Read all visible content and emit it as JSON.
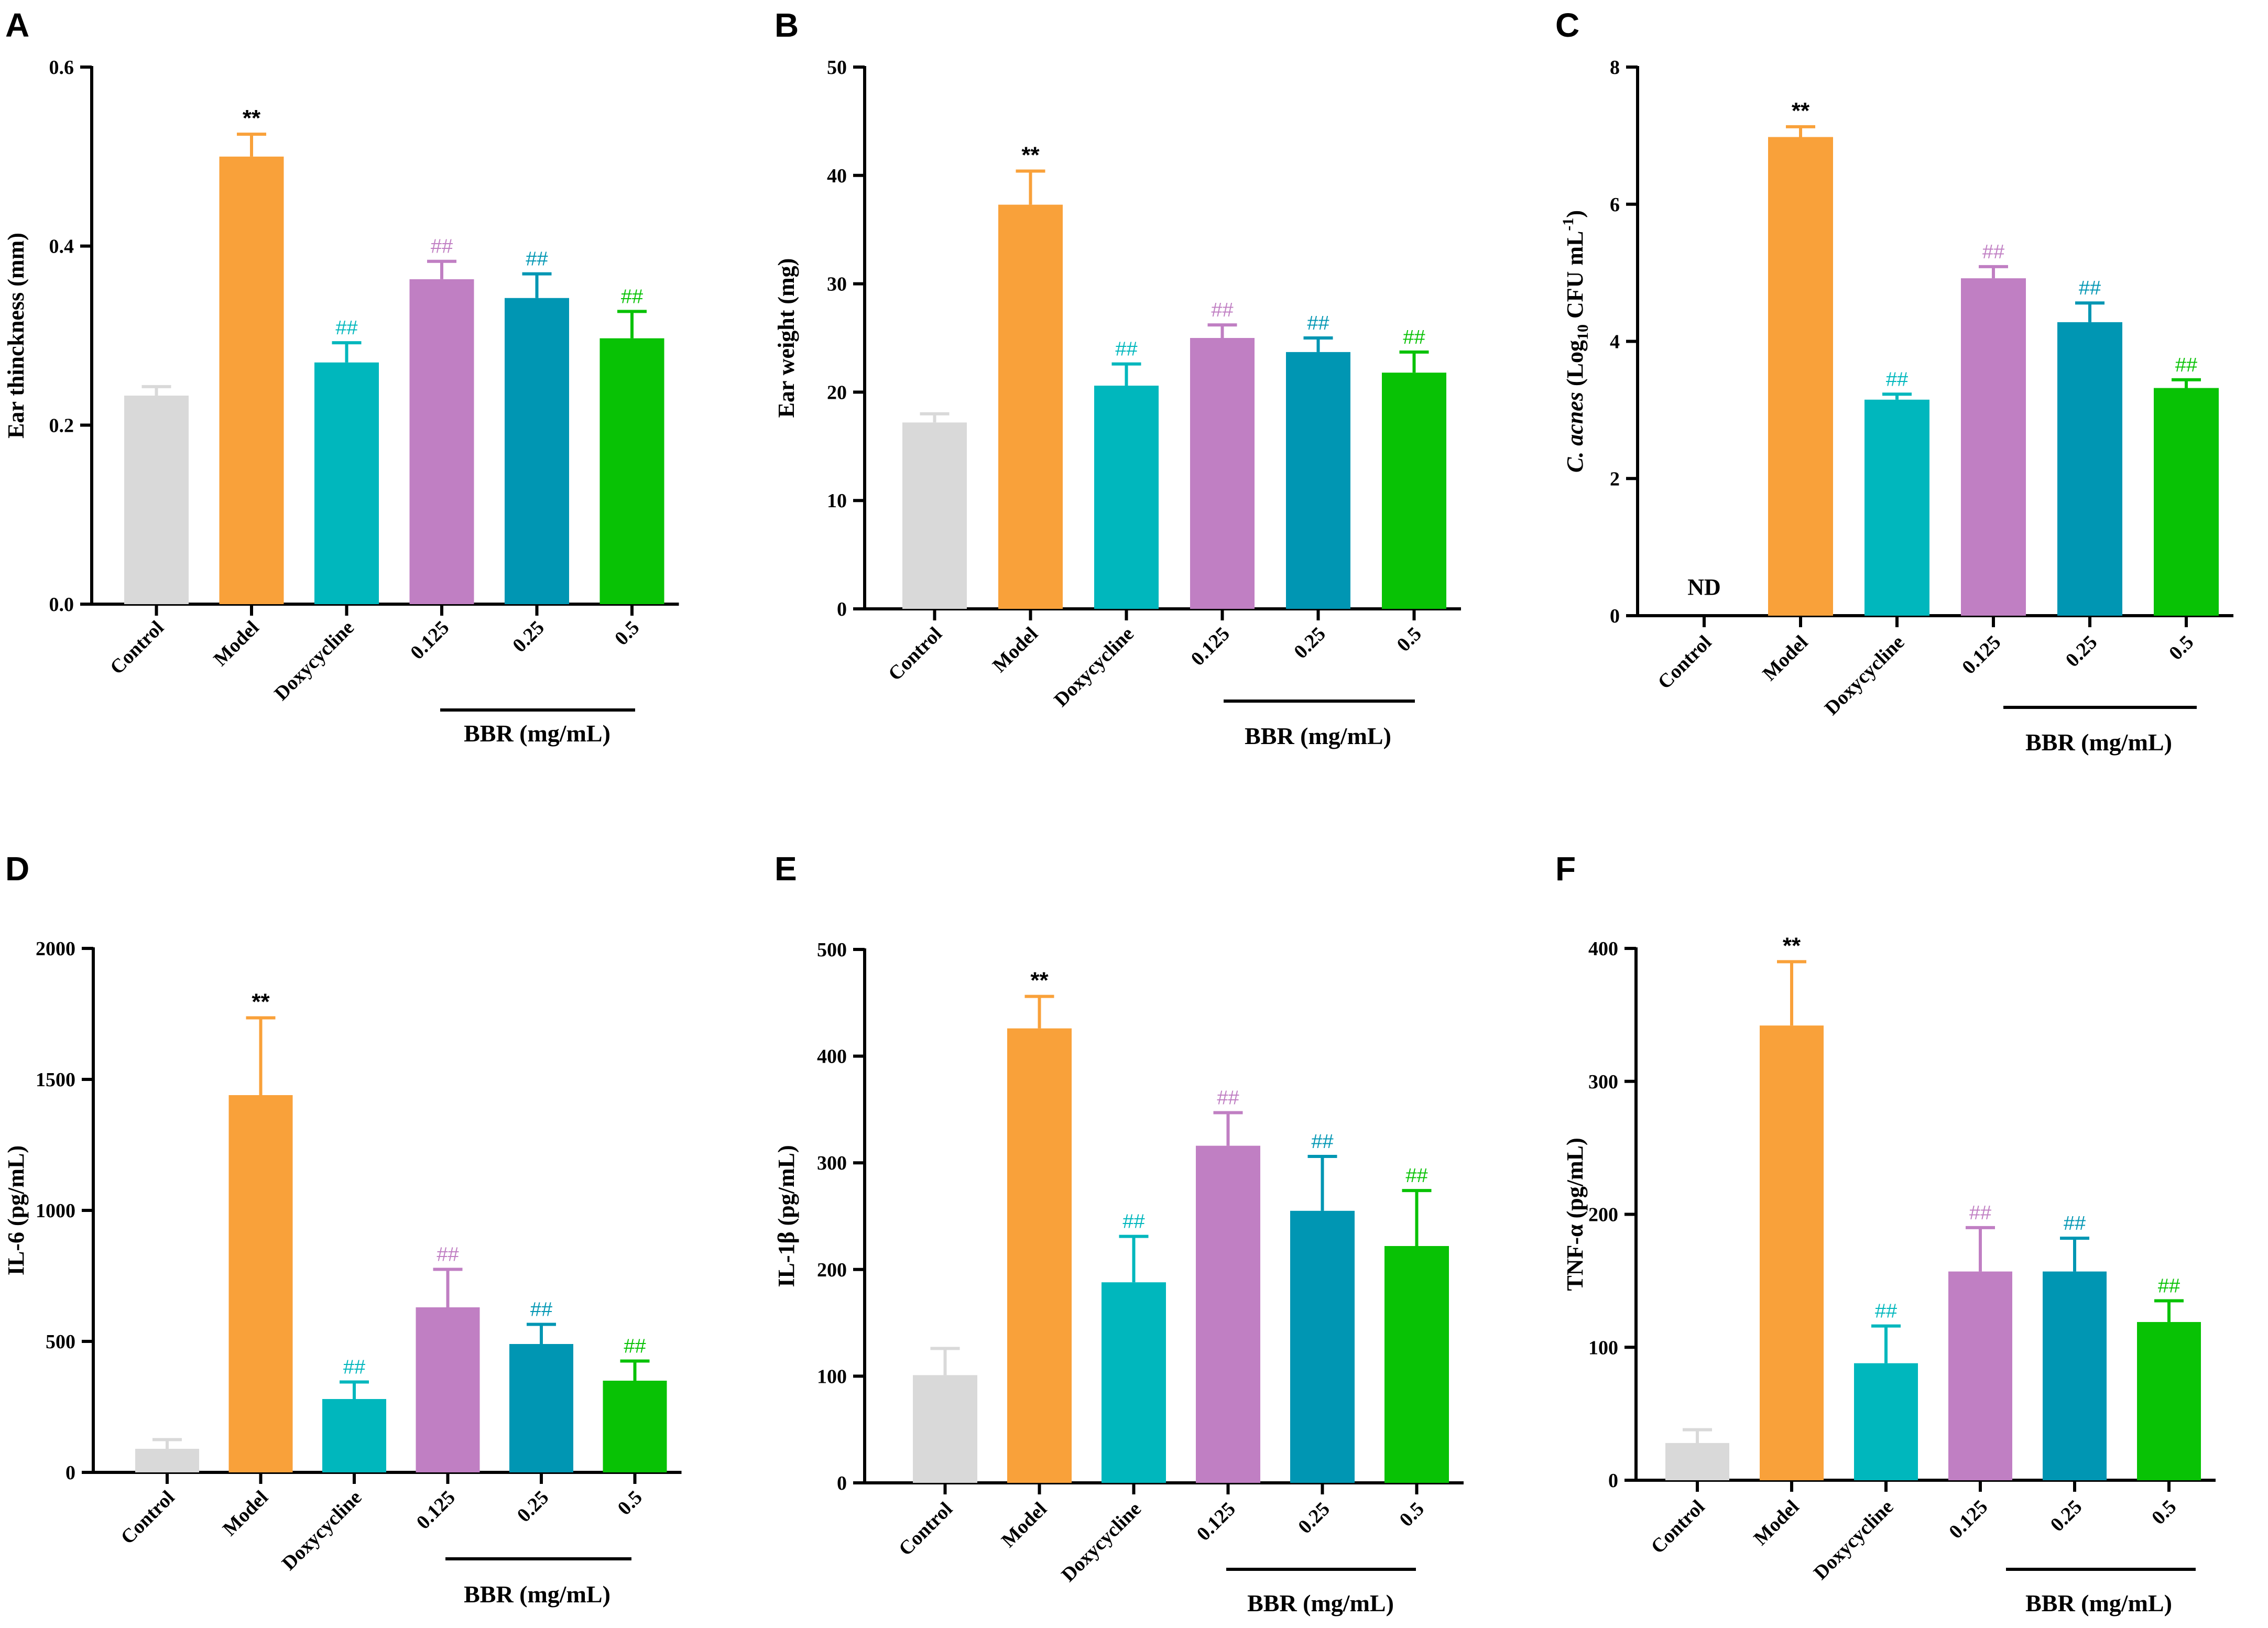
{
  "colors": {
    "Control": "#d9d9d9",
    "Model": "#f9a13a",
    "Doxycycline": "#00b7bd",
    "0.125": "#c07fc3",
    "0.25": "#0096b3",
    "0.5": "#08c205"
  },
  "chart_data": [
    {
      "type": "bar",
      "panel": "A",
      "ylabel": "Ear thinckness (mm)",
      "ylim": [
        0,
        0.6
      ],
      "yticks": [
        "0.0",
        "0.2",
        "0.4",
        "0.6"
      ],
      "ytick_values": [
        0,
        0.2,
        0.4,
        0.6
      ],
      "categories": [
        "Control",
        "Model",
        "Doxycycline",
        "0.125",
        "0.25",
        "0.5"
      ],
      "values": [
        0.233,
        0.5,
        0.27,
        0.363,
        0.342,
        0.297
      ],
      "errors": [
        0.01,
        0.025,
        0.022,
        0.02,
        0.027,
        0.03
      ],
      "annotations": [
        "",
        "**",
        "##",
        "##",
        "##",
        "##"
      ],
      "group_label": "BBR (mg/mL)"
    },
    {
      "type": "bar",
      "panel": "B",
      "ylabel": "Ear weight (mg)",
      "ylim": [
        0,
        50
      ],
      "yticks": [
        "0",
        "10",
        "20",
        "30",
        "40",
        "50"
      ],
      "ytick_values": [
        0,
        10,
        20,
        30,
        40,
        50
      ],
      "categories": [
        "Control",
        "Model",
        "Doxycycline",
        "0.125",
        "0.25",
        "0.5"
      ],
      "values": [
        17.2,
        37.3,
        20.6,
        25.0,
        23.7,
        21.8
      ],
      "errors": [
        0.8,
        3.1,
        2.0,
        1.2,
        1.3,
        1.9
      ],
      "annotations": [
        "",
        "**",
        "##",
        "##",
        "##",
        "##"
      ],
      "group_label": "BBR (mg/mL)"
    },
    {
      "type": "bar",
      "panel": "C",
      "ylabel_main": "C. acnes",
      "ylabel_rest": "(Log",
      "ylabel_sub": "10",
      "ylabel_mid": "CFU mL",
      "ylabel_sup": "-1",
      "ylabel_end": ")",
      "ylim": [
        0,
        8
      ],
      "yticks": [
        "0",
        "2",
        "4",
        "6",
        "8"
      ],
      "ytick_values": [
        0,
        2,
        4,
        6,
        8
      ],
      "categories": [
        "Control",
        "Model",
        "Doxycycline",
        "0.125",
        "0.25",
        "0.5"
      ],
      "values": [
        null,
        6.98,
        3.15,
        4.92,
        4.28,
        3.32
      ],
      "errors": [
        0,
        0.15,
        0.08,
        0.17,
        0.28,
        0.12
      ],
      "annotations": [
        "",
        "**",
        "##",
        "##",
        "##",
        "##"
      ],
      "nd_label": "ND",
      "group_label": "BBR (mg/mL)"
    },
    {
      "type": "bar",
      "panel": "D",
      "ylabel": "IL-6 (pg/mL)",
      "ylim": [
        0,
        2000
      ],
      "yticks": [
        "0",
        "500",
        "1000",
        "1500",
        "2000"
      ],
      "ytick_values": [
        0,
        500,
        1000,
        1500,
        2000
      ],
      "categories": [
        "Control",
        "Model",
        "Doxycycline",
        "0.125",
        "0.25",
        "0.5"
      ],
      "values": [
        90,
        1440,
        280,
        630,
        490,
        350
      ],
      "errors": [
        35,
        295,
        65,
        145,
        75,
        75
      ],
      "annotations": [
        "",
        "**",
        "##",
        "##",
        "##",
        "##"
      ],
      "group_label": "BBR (mg/mL)"
    },
    {
      "type": "bar",
      "panel": "E",
      "ylabel": "IL-1β (pg/mL)",
      "ylim": [
        0,
        500
      ],
      "yticks": [
        "0",
        "100",
        "200",
        "300",
        "400",
        "500"
      ],
      "ytick_values": [
        0,
        100,
        200,
        300,
        400,
        500
      ],
      "categories": [
        "Control",
        "Model",
        "Doxycycline",
        "0.125",
        "0.25",
        "0.5"
      ],
      "values": [
        101,
        426,
        188,
        316,
        255,
        222
      ],
      "errors": [
        25,
        30,
        43,
        31,
        51,
        52
      ],
      "annotations": [
        "",
        "**",
        "##",
        "##",
        "##",
        "##"
      ],
      "group_label": "BBR (mg/mL)"
    },
    {
      "type": "bar",
      "panel": "F",
      "ylabel": "TNF-α (pg/mL)",
      "ylim": [
        0,
        400
      ],
      "yticks": [
        "0",
        "100",
        "200",
        "300",
        "400"
      ],
      "ytick_values": [
        0,
        100,
        200,
        300,
        400
      ],
      "categories": [
        "Control",
        "Model",
        "Doxycycline",
        "0.125",
        "0.25",
        "0.5"
      ],
      "values": [
        28,
        342,
        88,
        157,
        157,
        119
      ],
      "errors": [
        10,
        48,
        28,
        33,
        25,
        16
      ],
      "annotations": [
        "",
        "**",
        "##",
        "##",
        "##",
        "##"
      ],
      "group_label": "BBR (mg/mL)"
    }
  ]
}
